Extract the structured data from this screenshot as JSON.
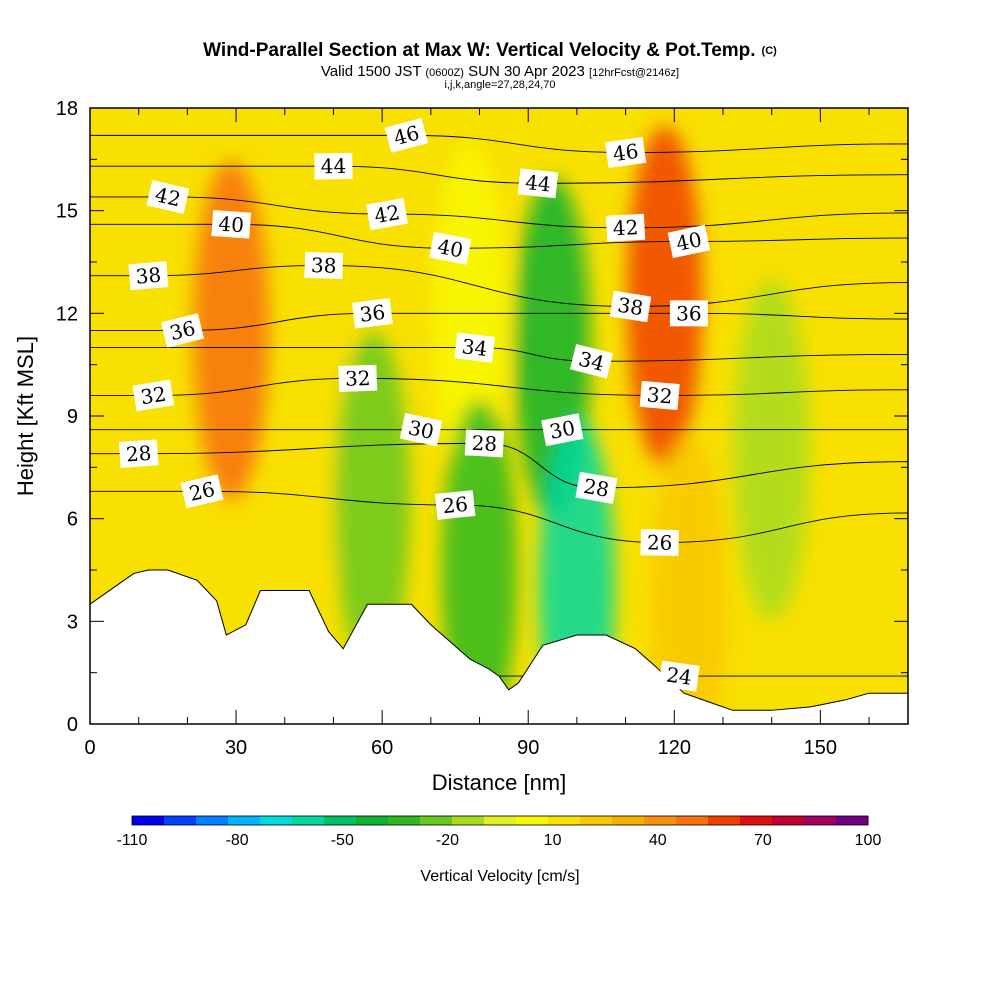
{
  "title": {
    "main": "Wind-Parallel Section at Max W: Vertical Velocity & Pot.Temp.",
    "copyright": "(C)",
    "valid_prefix": "Valid 1500 JST",
    "valid_utc": "(0600Z)",
    "valid_date": "SUN 30 Apr 2023",
    "forecast": "[12hrFcst@2146z]",
    "params": "i,j,k,angle=27,28,24,70"
  },
  "chart_data": {
    "type": "heatmap",
    "xlabel": "Distance [nm]",
    "ylabel": "Height [Kft MSL]",
    "xlim": [
      0,
      168
    ],
    "ylim": [
      0,
      18
    ],
    "x_ticks": [
      0,
      30,
      60,
      90,
      120,
      150
    ],
    "y_ticks": [
      0,
      3,
      6,
      9,
      12,
      15,
      18
    ],
    "colorbar": {
      "title": "Vertical Velocity [cm/s]",
      "min": -110,
      "max": 100,
      "step": 10,
      "tick_values": [
        -110,
        -80,
        -50,
        -20,
        10,
        40,
        70,
        100
      ],
      "colors": [
        "#0000ee",
        "#0040ff",
        "#0080ff",
        "#00b4ff",
        "#00dcdc",
        "#00d8a0",
        "#00c060",
        "#10b030",
        "#30b820",
        "#68c820",
        "#a8dc20",
        "#e0f020",
        "#f8f800",
        "#f8e000",
        "#f8c800",
        "#f8b000",
        "#f89010",
        "#f87010",
        "#f04000",
        "#e01010",
        "#c00030",
        "#a00060",
        "#700080"
      ]
    },
    "terrain_profile": {
      "x": [
        0,
        3,
        6,
        9,
        12,
        16,
        22,
        26,
        28,
        32,
        35,
        39,
        45,
        49,
        52,
        57,
        61,
        66,
        70,
        74,
        78,
        82,
        84,
        86,
        88,
        93,
        100,
        106,
        112,
        116,
        122,
        128,
        132,
        140,
        148,
        155,
        160,
        168
      ],
      "y": [
        3.5,
        3.8,
        4.1,
        4.4,
        4.5,
        4.5,
        4.2,
        3.6,
        2.6,
        2.9,
        3.9,
        3.9,
        3.9,
        2.7,
        2.2,
        3.5,
        3.5,
        3.5,
        2.9,
        2.4,
        1.9,
        1.6,
        1.4,
        1.0,
        1.2,
        2.3,
        2.6,
        2.6,
        2.2,
        1.7,
        0.9,
        0.6,
        0.4,
        0.4,
        0.5,
        0.7,
        0.9,
        0.9
      ]
    },
    "w_features": [
      {
        "x": 29,
        "y": 11.5,
        "value": 60
      },
      {
        "x": 48,
        "y": 9.0,
        "value": 20
      },
      {
        "x": 58,
        "y": 6.5,
        "value": -20
      },
      {
        "x": 78,
        "y": 12.0,
        "value": 10
      },
      {
        "x": 80,
        "y": 4.5,
        "value": -30
      },
      {
        "x": 95,
        "y": 11.0,
        "value": -40
      },
      {
        "x": 100,
        "y": 4.0,
        "value": -55
      },
      {
        "x": 118,
        "y": 12.5,
        "value": 70
      },
      {
        "x": 123,
        "y": 3.5,
        "value": 30
      },
      {
        "x": 140,
        "y": 8.0,
        "value": -10
      },
      {
        "x": 160,
        "y": 12.0,
        "value": 25
      }
    ],
    "theta_contours": [
      {
        "value": "46",
        "x": 65,
        "y": 17.2
      },
      {
        "value": "46",
        "x": 110,
        "y": 16.7
      },
      {
        "value": "44",
        "x": 50,
        "y": 16.3
      },
      {
        "value": "44",
        "x": 92,
        "y": 15.8
      },
      {
        "value": "42",
        "x": 16,
        "y": 15.4
      },
      {
        "value": "42",
        "x": 61,
        "y": 14.9
      },
      {
        "value": "42",
        "x": 110,
        "y": 14.5
      },
      {
        "value": "40",
        "x": 29,
        "y": 14.6
      },
      {
        "value": "40",
        "x": 74,
        "y": 13.9
      },
      {
        "value": "40",
        "x": 123,
        "y": 14.1
      },
      {
        "value": "38",
        "x": 12,
        "y": 13.1
      },
      {
        "value": "38",
        "x": 48,
        "y": 13.4
      },
      {
        "value": "38",
        "x": 111,
        "y": 12.2
      },
      {
        "value": "36",
        "x": 19,
        "y": 11.5
      },
      {
        "value": "36",
        "x": 58,
        "y": 12.0
      },
      {
        "value": "36",
        "x": 123,
        "y": 12.0
      },
      {
        "value": "34",
        "x": 79,
        "y": 11.0
      },
      {
        "value": "34",
        "x": 103,
        "y": 10.6
      },
      {
        "value": "32",
        "x": 13,
        "y": 9.6
      },
      {
        "value": "32",
        "x": 55,
        "y": 10.1
      },
      {
        "value": "32",
        "x": 117,
        "y": 9.6
      },
      {
        "value": "30",
        "x": 68,
        "y": 8.6
      },
      {
        "value": "30",
        "x": 97,
        "y": 8.6
      },
      {
        "value": "28",
        "x": 10,
        "y": 7.9
      },
      {
        "value": "28",
        "x": 81,
        "y": 8.2
      },
      {
        "value": "28",
        "x": 104,
        "y": 6.9
      },
      {
        "value": "26",
        "x": 23,
        "y": 6.8
      },
      {
        "value": "26",
        "x": 75,
        "y": 6.4
      },
      {
        "value": "26",
        "x": 117,
        "y": 5.3
      },
      {
        "value": "24",
        "x": 121,
        "y": 1.4
      }
    ]
  }
}
